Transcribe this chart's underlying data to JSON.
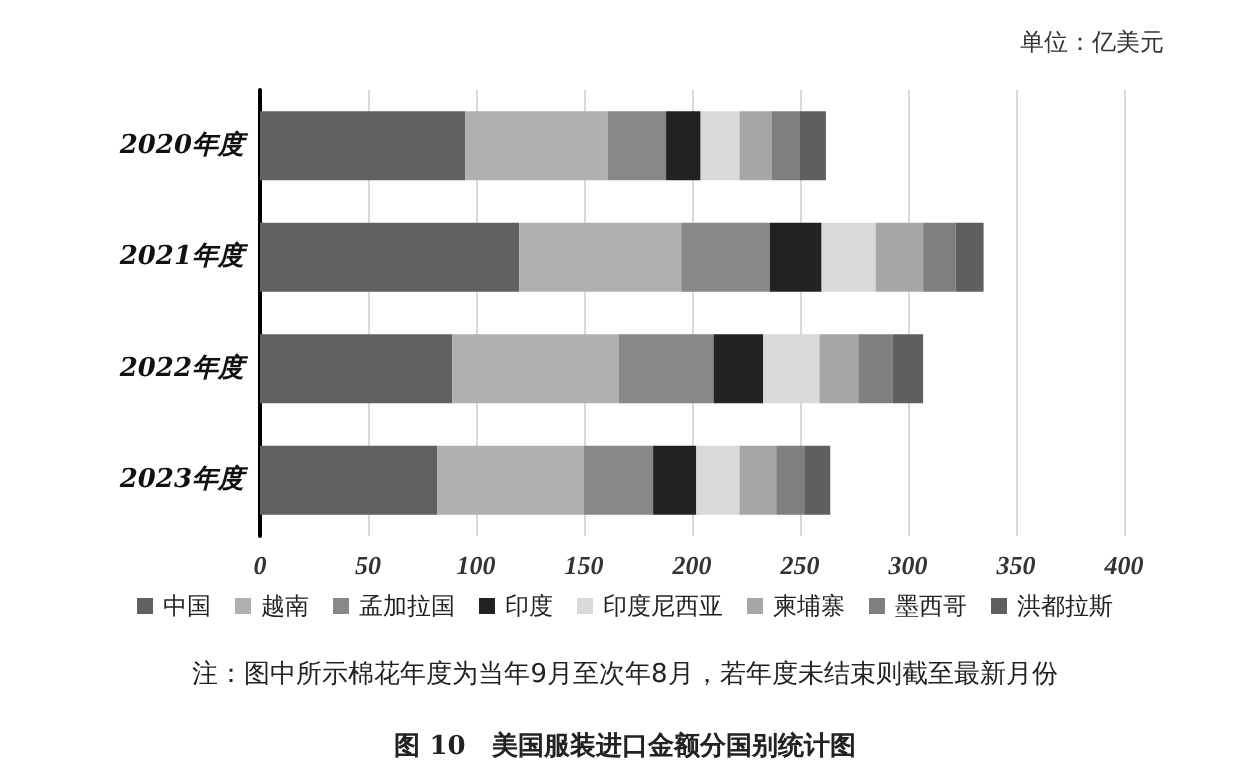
{
  "chart_data": {
    "type": "bar",
    "orientation": "horizontal",
    "stacked": true,
    "title": "图 10　美国服装进口金额分国别统计图",
    "annotations": [
      "单位：亿美元",
      "注：图中所示棉花年度为当年9月至次年8月，若年度未结束则截至最新月份"
    ],
    "categories": [
      "2020年度",
      "2021年度",
      "2022年度",
      "2023年度"
    ],
    "series": [
      {
        "name": "中国",
        "color": "#606060",
        "values": [
          95,
          120,
          89,
          82
        ]
      },
      {
        "name": "越南",
        "color": "#b0b0b0",
        "values": [
          66,
          75,
          77,
          68
        ]
      },
      {
        "name": "孟加拉国",
        "color": "#888888",
        "values": [
          27,
          41,
          44,
          32
        ]
      },
      {
        "name": "印度",
        "color": "#222222",
        "values": [
          16,
          24,
          23,
          20
        ]
      },
      {
        "name": "印度尼西亚",
        "color": "#d9d9d9",
        "values": [
          18,
          25,
          26,
          20
        ]
      },
      {
        "name": "柬埔寨",
        "color": "#a6a6a6",
        "values": [
          15,
          22,
          18,
          17
        ]
      },
      {
        "name": "墨西哥",
        "color": "#7f7f7f",
        "values": [
          13,
          15,
          16,
          13
        ]
      },
      {
        "name": "洪都拉斯",
        "color": "#5f5f5f",
        "values": [
          12,
          13,
          14,
          12
        ]
      }
    ],
    "xlim": [
      0,
      400
    ],
    "xticks": [
      0,
      50,
      100,
      150,
      200,
      250,
      300,
      350,
      400
    ],
    "grid": "x",
    "legend": "bottom"
  }
}
